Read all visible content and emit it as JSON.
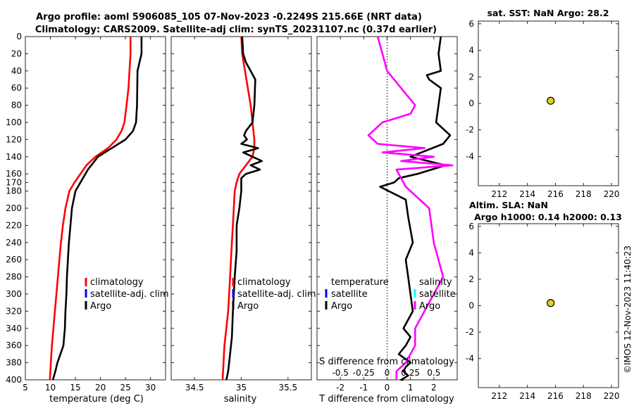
{
  "titles": {
    "line1": "Argo profile: aoml 5906085_105 07-Nov-2023 -0.2249S 215.66E (NRT data)",
    "line2": "Climatology: CARS2009. Satellite-adj clim: synTS_20231107.nc (0.37d earlier)",
    "sst": "sat. SST: NaN Argo: 28.2",
    "sla1": "Altim. SLA: NaN",
    "sla2": "Argo h1000: 0.14 h2000: 0.13",
    "stamp": "©IMOS 12-Nov-2023 11:40:23"
  },
  "colors": {
    "climatology": "#ff0000",
    "satellite": "#0000ff",
    "argo": "#000000",
    "sal_diff": "#ff00ff",
    "sal_sat": "#00ffff",
    "dot": "#e0d020"
  },
  "depth_ticks": [
    0,
    20,
    40,
    60,
    80,
    100,
    120,
    140,
    160,
    170,
    180,
    200,
    220,
    240,
    260,
    280,
    300,
    320,
    340,
    360,
    380,
    400
  ],
  "depth_tick_labels": [
    "0",
    "20",
    "40",
    "60",
    "80",
    "100",
    "120",
    "140",
    "160",
    "170",
    "180",
    "200",
    "220",
    "240",
    "260",
    "280",
    "300",
    "320",
    "340",
    "360",
    "380",
    "400"
  ],
  "chart_data": [
    {
      "type": "line",
      "name": "temperature-profile",
      "xlabel": "temperature (deg C)",
      "xlim": [
        5,
        33
      ],
      "ylim": [
        0,
        400
      ],
      "xticks": [
        5,
        10,
        15,
        20,
        25,
        30
      ],
      "xtick_labels": [
        "5",
        "10",
        "15",
        "20",
        "25",
        "30"
      ],
      "legend": [
        "climatology",
        "satellite-adj. clim",
        "Argo"
      ],
      "series": [
        {
          "name": "climatology",
          "color": "#ff0000",
          "x": [
            26.0,
            26.0,
            25.8,
            25.6,
            25.2,
            24.8,
            24.2,
            23.2,
            21.5,
            19.0,
            17.2,
            16.0,
            14.8,
            13.8,
            13.0,
            12.5,
            12.1,
            11.8,
            11.5,
            11.2,
            10.9,
            10.6,
            10.3,
            10.1,
            9.9
          ],
          "y": [
            0,
            20,
            40,
            60,
            80,
            100,
            110,
            120,
            130,
            140,
            150,
            160,
            170,
            180,
            200,
            220,
            240,
            260,
            280,
            300,
            320,
            340,
            360,
            380,
            400
          ]
        },
        {
          "name": "Argo",
          "color": "#000000",
          "x": [
            28.2,
            28.2,
            27.8,
            27.4,
            27.3,
            27.1,
            26.5,
            25.0,
            19.5,
            17.5,
            16.5,
            15.0,
            14.3,
            14.0,
            13.7,
            13.5,
            13.3,
            13.2,
            13.0,
            12.9,
            12.6,
            12.0,
            11.4,
            11.0,
            10.5
          ],
          "y": [
            0,
            20,
            30,
            40,
            80,
            100,
            110,
            120,
            140,
            155,
            165,
            180,
            200,
            220,
            240,
            260,
            280,
            300,
            320,
            340,
            360,
            370,
            380,
            390,
            400
          ]
        }
      ]
    },
    {
      "type": "line",
      "name": "salinity-profile",
      "xlabel": "salinity",
      "xlim": [
        34.25,
        35.75
      ],
      "ylim": [
        0,
        400
      ],
      "xticks": [
        34.5,
        35,
        35.5
      ],
      "xtick_labels": [
        "34.5",
        "35",
        "35.5"
      ],
      "legend": [
        "climatology",
        "satellite-adj. clim",
        "Argo"
      ],
      "series": [
        {
          "name": "climatology",
          "color": "#ff0000",
          "x": [
            35.0,
            35.01,
            35.04,
            35.07,
            35.1,
            35.12,
            35.14,
            35.14,
            35.12,
            35.05,
            34.98,
            34.95,
            34.93,
            34.92,
            34.91,
            34.9,
            34.89,
            34.88,
            34.87,
            34.86,
            34.84,
            34.82,
            34.8
          ],
          "y": [
            0,
            20,
            40,
            60,
            80,
            100,
            120,
            130,
            140,
            150,
            160,
            170,
            180,
            200,
            220,
            240,
            260,
            280,
            300,
            320,
            340,
            360,
            400
          ]
        },
        {
          "name": "Argo",
          "color": "#000000",
          "x": [
            35.01,
            35.02,
            35.05,
            35.15,
            35.14,
            35.12,
            35.05,
            35.03,
            35.06,
            35.0,
            35.18,
            35.02,
            35.22,
            35.1,
            35.2,
            35.05,
            35.0,
            35.0,
            34.98,
            34.95,
            34.95,
            34.93,
            34.92,
            34.91,
            34.9,
            34.88,
            34.86,
            34.84
          ],
          "y": [
            0,
            20,
            30,
            50,
            80,
            100,
            110,
            115,
            120,
            125,
            130,
            135,
            145,
            150,
            155,
            160,
            165,
            180,
            200,
            220,
            250,
            280,
            300,
            320,
            350,
            370,
            390,
            400
          ]
        }
      ]
    },
    {
      "type": "line",
      "name": "difference-profile",
      "xlabel": "T difference from climatology",
      "xlabel_top": "S difference from climatology",
      "xlim": [
        -3,
        3
      ],
      "ylim": [
        0,
        400
      ],
      "xticks": [
        -2,
        -1,
        0,
        1,
        2
      ],
      "xtick_labels": [
        "-2",
        "-1",
        "0",
        "1",
        "2"
      ],
      "s_tick_labels": [
        "-0.5",
        "-0.25",
        "0",
        "0.25",
        "0.5"
      ],
      "legend_left": [
        "temperature",
        "satellite",
        "Argo"
      ],
      "legend_right": [
        "salinity",
        "satellite",
        "Argo"
      ],
      "series": [
        {
          "name": "T difference Argo",
          "color": "#000000",
          "x": [
            2.3,
            2.2,
            2.3,
            1.7,
            1.8,
            2.3,
            2.1,
            2.7,
            2.4,
            1.0,
            2.5,
            1.3,
            0.5,
            0.3,
            -0.3,
            0.8,
            0.9,
            1.1,
            0.8,
            0.9,
            1.0,
            1.1,
            0.7,
            1.0,
            0.8,
            0.5,
            1.0,
            0.8,
            0.7,
            0.9,
            0.6,
            0.7
          ],
          "y": [
            0,
            20,
            40,
            45,
            50,
            60,
            100,
            115,
            125,
            140,
            150,
            160,
            165,
            170,
            175,
            190,
            210,
            240,
            260,
            280,
            300,
            320,
            340,
            350,
            360,
            370,
            380,
            385,
            390,
            395,
            400,
            400
          ]
        },
        {
          "name": "S difference Argo",
          "color": "#ff00ff",
          "x": [
            -0.1,
            -0.05,
            0.0,
            0.15,
            0.3,
            0.25,
            -0.05,
            -0.2,
            -0.1,
            0.4,
            -0.05,
            0.5,
            0.15,
            0.7,
            0.1,
            0.2,
            0.45,
            0.5,
            0.6,
            0.5,
            0.4,
            0.3,
            0.3,
            0.2,
            0.1,
            0.1
          ],
          "y": [
            0,
            20,
            40,
            60,
            80,
            90,
            100,
            115,
            125,
            130,
            135,
            140,
            145,
            150,
            155,
            175,
            200,
            240,
            280,
            300,
            320,
            340,
            360,
            380,
            390,
            400
          ]
        }
      ]
    },
    {
      "type": "scatter",
      "name": "sst-panel",
      "xlim": [
        210.5,
        220.5
      ],
      "ylim": [
        -6.2,
        6.2
      ],
      "xticks": [
        212,
        214,
        216,
        218,
        220
      ],
      "xtick_labels": [
        "212",
        "214",
        "216",
        "218",
        "220"
      ],
      "yticks": [
        6,
        4,
        2,
        0,
        -2,
        -4
      ],
      "ytick_labels": [
        "6",
        "4",
        "2",
        "0",
        "-2",
        "-4"
      ],
      "points": [
        {
          "x": 215.66,
          "y": 0.2
        }
      ]
    },
    {
      "type": "scatter",
      "name": "sla-panel",
      "xlim": [
        210.5,
        220.5
      ],
      "ylim": [
        -6.2,
        6.2
      ],
      "xticks": [
        212,
        214,
        216,
        218,
        220
      ],
      "xtick_labels": [
        "212",
        "214",
        "216",
        "218",
        "220"
      ],
      "yticks": [
        6,
        4,
        2,
        0,
        -2,
        -4
      ],
      "ytick_labels": [
        "6",
        "4",
        "2",
        "0",
        "-2",
        "-4"
      ],
      "points": [
        {
          "x": 215.66,
          "y": 0.2
        }
      ]
    }
  ]
}
